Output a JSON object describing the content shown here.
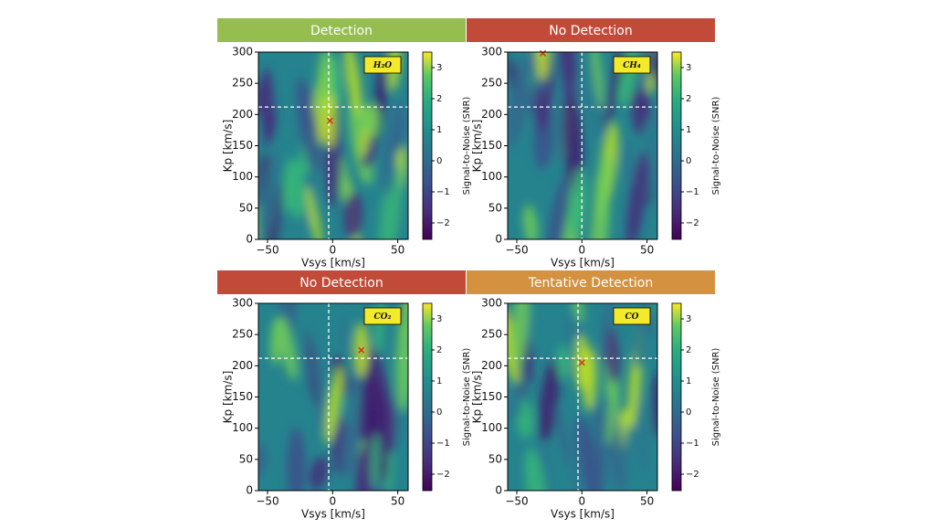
{
  "chart_data": [
    {
      "type": "heatmap",
      "banner": "Detection",
      "banner_color": "#95bd4f",
      "molecule": "H₂O",
      "x_label": "Vsys [km/s]",
      "y_label": "Kp [km/s]",
      "colorbar_label": "Signal-to-Noise (SNR)",
      "xlim": [
        -57,
        58
      ],
      "ylim": [
        0,
        300
      ],
      "xticks": [
        {
          "value": -50,
          "label": "−50"
        },
        0,
        50
      ],
      "yticks": [
        0,
        50,
        100,
        150,
        200,
        250,
        300
      ],
      "clim": [
        -2.53,
        3.5
      ],
      "cticks": [
        {
          "value": -2,
          "label": "−2"
        },
        {
          "value": -1,
          "label": "−1"
        },
        0,
        1,
        2,
        3
      ],
      "crosshair_x": -3,
      "crosshair_y": 212,
      "marker": {
        "x": -2,
        "y": 190
      }
    },
    {
      "type": "heatmap",
      "banner": "No Detection",
      "banner_color": "#c24a39",
      "molecule": "CH₄",
      "x_label": "Vsys [km/s]",
      "y_label": "Kp [km/s]",
      "colorbar_label": "Signal-to-Noise (SNR)",
      "xlim": [
        -57,
        58
      ],
      "ylim": [
        0,
        300
      ],
      "xticks": [
        {
          "value": -50,
          "label": "−50"
        },
        0,
        50
      ],
      "yticks": [
        0,
        50,
        100,
        150,
        200,
        250,
        300
      ],
      "clim": [
        -2.53,
        3.5
      ],
      "cticks": [
        {
          "value": -2,
          "label": "−2"
        },
        {
          "value": -1,
          "label": "−1"
        },
        0,
        1,
        2,
        3
      ],
      "crosshair_x": 0,
      "crosshair_y": 212,
      "marker": {
        "x": -30,
        "y": 298
      }
    },
    {
      "type": "heatmap",
      "banner": "No Detection",
      "banner_color": "#c24a39",
      "molecule": "CO₂",
      "x_label": "Vsys [km/s]",
      "y_label": "Kp [km/s]",
      "colorbar_label": "Signal-to-Noise (SNR)",
      "xlim": [
        -57,
        58
      ],
      "ylim": [
        0,
        300
      ],
      "xticks": [
        {
          "value": -50,
          "label": "−50"
        },
        0,
        50
      ],
      "yticks": [
        0,
        50,
        100,
        150,
        200,
        250,
        300
      ],
      "clim": [
        -2.53,
        3.5
      ],
      "cticks": [
        {
          "value": -2,
          "label": "−2"
        },
        {
          "value": -1,
          "label": "−1"
        },
        0,
        1,
        2,
        3
      ],
      "crosshair_x": -3,
      "crosshair_y": 212,
      "marker": {
        "x": 22,
        "y": 225
      }
    },
    {
      "type": "heatmap",
      "banner": "Tentative Detection",
      "banner_color": "#d4913f",
      "molecule": "CO",
      "x_label": "Vsys [km/s]",
      "y_label": "Kp [km/s]",
      "colorbar_label": "Signal-to-Noise (SNR)",
      "xlim": [
        -57,
        58
      ],
      "ylim": [
        0,
        300
      ],
      "xticks": [
        {
          "value": -50,
          "label": "−50"
        },
        0,
        50
      ],
      "yticks": [
        0,
        50,
        100,
        150,
        200,
        250,
        300
      ],
      "clim": [
        -2.53,
        3.5
      ],
      "cticks": [
        {
          "value": -2,
          "label": "−2"
        },
        {
          "value": -1,
          "label": "−1"
        },
        0,
        1,
        2,
        3
      ],
      "crosshair_x": -3,
      "crosshair_y": 212,
      "marker": {
        "x": 0,
        "y": 205
      }
    }
  ]
}
